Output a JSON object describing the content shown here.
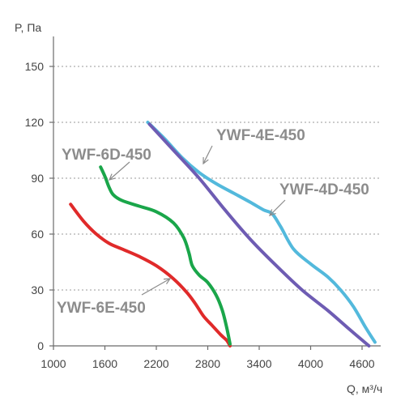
{
  "chart_data": {
    "type": "line",
    "title": "",
    "xlabel": "Q, м³/ч",
    "ylabel": "P, Па",
    "xlim": [
      1000,
      4800
    ],
    "ylim": [
      0,
      165
    ],
    "x_ticks": [
      "1000",
      "1600",
      "2200",
      "2800",
      "3400",
      "4000",
      "4600"
    ],
    "y_ticks": [
      "0",
      "30",
      "60",
      "90",
      "120",
      "150"
    ],
    "grid": "horizontal dashed",
    "series": [
      {
        "name": "YWF-6E-450",
        "color": "#e02a2a",
        "x": [
          1200,
          1350,
          1500,
          1650,
          1800,
          2000,
          2200,
          2400,
          2550,
          2650,
          2750,
          2850,
          2950,
          3020,
          3060
        ],
        "y": [
          76,
          67,
          60,
          55,
          52,
          48,
          43,
          36,
          29,
          23,
          16,
          11,
          6,
          3,
          0
        ]
      },
      {
        "name": "YWF-6D-450",
        "color": "#1aa64a",
        "x": [
          1550,
          1600,
          1650,
          1700,
          1800,
          2000,
          2200,
          2400,
          2520,
          2580,
          2620,
          2700,
          2800,
          2900,
          2970,
          3020,
          3060
        ],
        "y": [
          96,
          91,
          85,
          81,
          78,
          75,
          72,
          66,
          58,
          50,
          43,
          38,
          34,
          27,
          19,
          10,
          1
        ]
      },
      {
        "name": "YWF-4D-450",
        "color": "#53b9dc",
        "x": [
          2100,
          2300,
          2500,
          2700,
          2900,
          3100,
          3300,
          3450,
          3550,
          3650,
          3800,
          4000,
          4200,
          4350,
          4500,
          4640,
          4750
        ],
        "y": [
          120,
          111,
          101,
          93,
          87,
          82,
          77,
          73,
          71,
          64,
          52,
          44,
          37,
          30,
          21,
          10,
          2
        ]
      },
      {
        "name": "YWF-4E-450",
        "color": "#6e5cb3",
        "x": [
          2120,
          2400,
          2700,
          3000,
          3300,
          3600,
          3900,
          4200,
          4450,
          4680
        ],
        "y": [
          119,
          105,
          90,
          73,
          57,
          43,
          30,
          19,
          9,
          0
        ]
      }
    ],
    "annotations": [
      {
        "text": "YWF-4E-450",
        "series": "YWF-4E-450"
      },
      {
        "text": "YWF-6D-450",
        "series": "YWF-6D-450"
      },
      {
        "text": "YWF-4D-450",
        "series": "YWF-4D-450"
      },
      {
        "text": "YWF-6E-450",
        "series": "YWF-6E-450"
      }
    ]
  }
}
